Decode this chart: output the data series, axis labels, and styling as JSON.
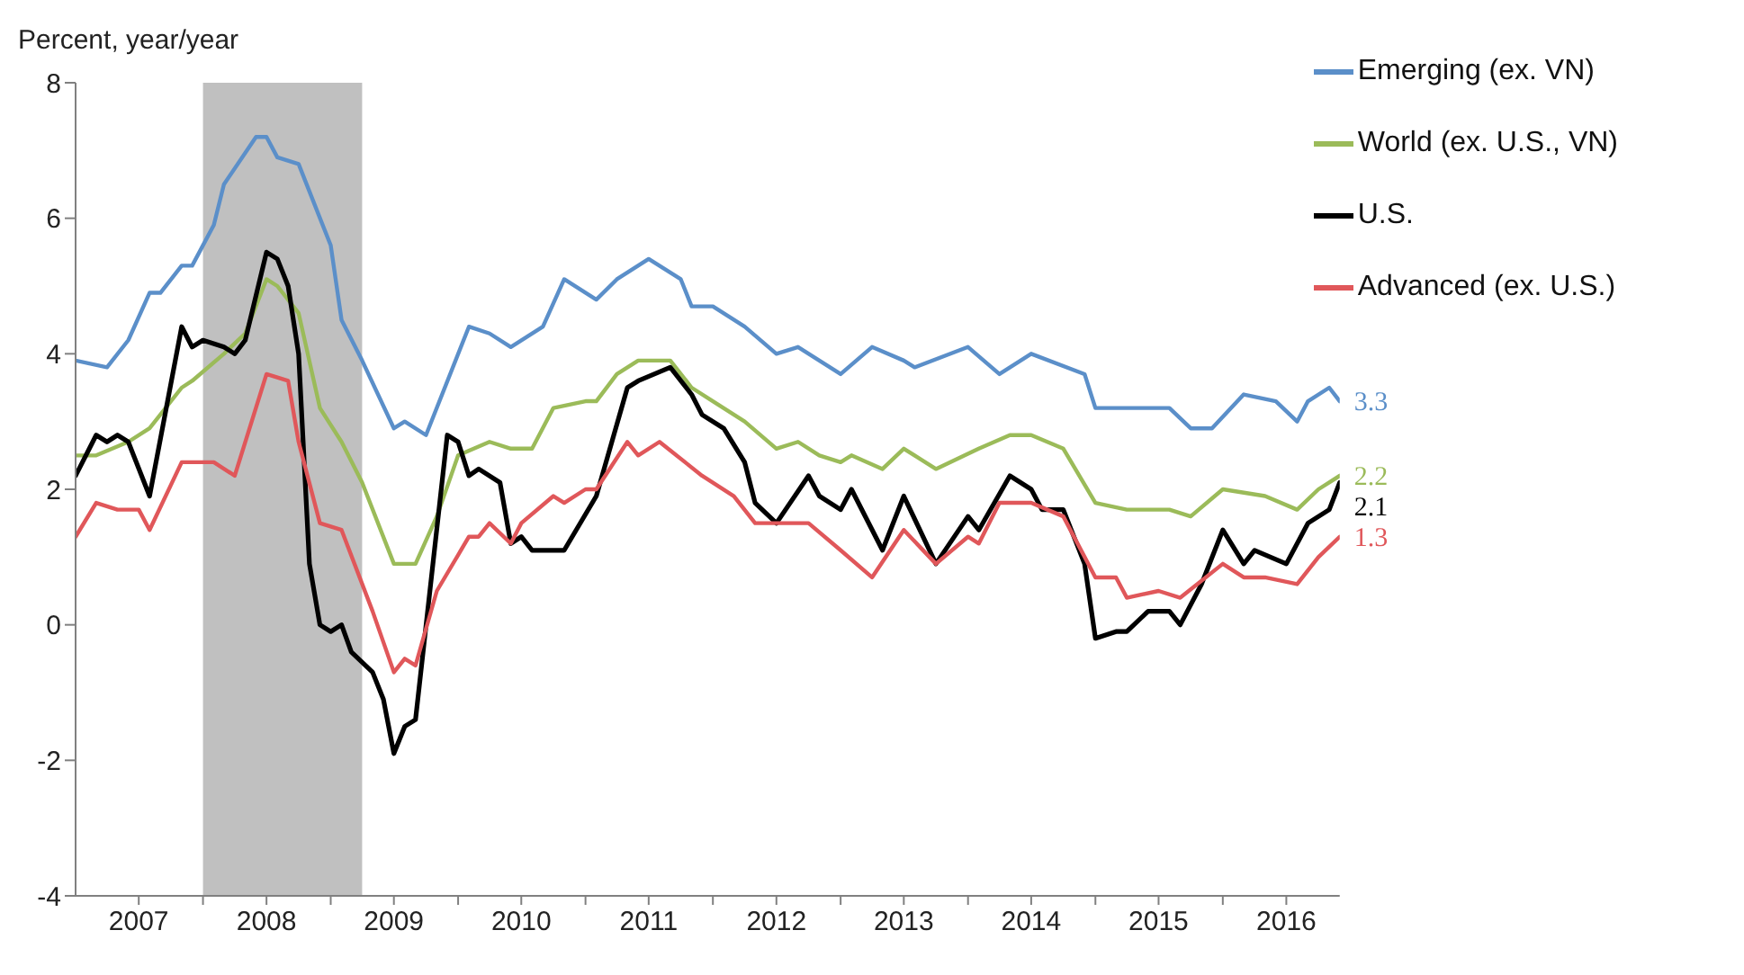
{
  "chart_data": {
    "type": "line",
    "ylabel": "Percent, year/year",
    "xlim": [
      "2007-01",
      "2016-12"
    ],
    "xticks": [
      {
        "value": "2007-07",
        "label": "2007"
      },
      {
        "value": "2008-07",
        "label": "2008"
      },
      {
        "value": "2009-07",
        "label": "2009"
      },
      {
        "value": "2010-07",
        "label": "2010"
      },
      {
        "value": "2011-07",
        "label": "2011"
      },
      {
        "value": "2012-07",
        "label": "2012"
      },
      {
        "value": "2013-07",
        "label": "2013"
      },
      {
        "value": "2014-07",
        "label": "2014"
      },
      {
        "value": "2015-07",
        "label": "2015"
      },
      {
        "value": "2016-07",
        "label": "2016"
      },
      {
        "value": "2008-01",
        "label": null
      },
      {
        "value": "2009-01",
        "label": null
      },
      {
        "value": "2010-01",
        "label": null
      },
      {
        "value": "2011-01",
        "label": null
      },
      {
        "value": "2012-01",
        "label": null
      },
      {
        "value": "2013-01",
        "label": null
      },
      {
        "value": "2014-01",
        "label": null
      },
      {
        "value": "2015-01",
        "label": null
      },
      {
        "value": "2016-01",
        "label": null
      }
    ],
    "ylim": [
      -4,
      8
    ],
    "yticks": [
      -4,
      -2,
      0,
      2,
      4,
      6,
      8
    ],
    "grid": false,
    "legend": "top right",
    "marker": "none",
    "line_style": "solid",
    "bands": [
      {
        "axis": "x",
        "from": "2008-01",
        "to": "2009-04",
        "color": "#c0c0c0"
      }
    ],
    "series": [
      {
        "name": "Emerging (ex. VN)",
        "color": "#5b8fc9",
        "x": [
          "2007-01",
          "2007-04",
          "2007-06",
          "2007-08",
          "2007-09",
          "2007-11",
          "2007-12",
          "2008-02",
          "2008-03",
          "2008-06",
          "2008-07",
          "2008-08",
          "2008-10",
          "2009-01",
          "2009-02",
          "2009-04",
          "2009-07",
          "2009-08",
          "2009-10",
          "2010-02",
          "2010-04",
          "2010-06",
          "2010-09",
          "2010-11",
          "2011-02",
          "2011-04",
          "2011-07",
          "2011-10",
          "2011-11",
          "2012-01",
          "2012-04",
          "2012-07",
          "2012-09",
          "2012-11",
          "2013-01",
          "2013-04",
          "2013-07",
          "2013-08",
          "2014-01",
          "2014-04",
          "2014-07",
          "2014-12",
          "2015-01",
          "2015-04",
          "2015-08",
          "2015-10",
          "2015-12",
          "2016-03",
          "2016-06",
          "2016-08",
          "2016-09",
          "2016-11",
          "2016-12"
        ],
        "values": [
          3.9,
          3.8,
          4.2,
          4.9,
          4.9,
          5.3,
          5.3,
          5.9,
          6.5,
          7.2,
          7.2,
          6.9,
          6.8,
          5.6,
          4.5,
          3.9,
          2.9,
          3.0,
          2.8,
          4.4,
          4.3,
          4.1,
          4.4,
          5.1,
          4.8,
          5.1,
          5.4,
          5.1,
          4.7,
          4.7,
          4.4,
          4.0,
          4.1,
          3.9,
          3.7,
          4.1,
          3.9,
          3.8,
          4.1,
          3.7,
          4.0,
          3.7,
          3.2,
          3.2,
          3.2,
          2.9,
          2.9,
          3.4,
          3.3,
          3.0,
          3.3,
          3.5,
          3.3
        ],
        "value_labels": [
          null,
          null,
          null,
          null,
          null,
          null,
          null,
          null,
          null,
          null,
          null,
          null,
          null,
          null,
          null,
          null,
          null,
          null,
          null,
          null,
          null,
          null,
          null,
          null,
          null,
          null,
          null,
          null,
          null,
          null,
          null,
          null,
          null,
          null,
          null,
          null,
          null,
          null,
          null,
          null,
          null,
          null,
          null,
          null,
          null,
          null,
          null,
          null,
          null,
          null,
          null,
          null,
          "3.3"
        ]
      },
      {
        "name": "World (ex. U.S., VN)",
        "color": "#9bbb59",
        "x": [
          "2007-01",
          "2007-03",
          "2007-06",
          "2007-08",
          "2007-11",
          "2007-12",
          "2008-03",
          "2008-05",
          "2008-07",
          "2008-08",
          "2008-10",
          "2008-12",
          "2009-02",
          "2009-04",
          "2009-07",
          "2009-09",
          "2009-11",
          "2010-01",
          "2010-04",
          "2010-06",
          "2010-08",
          "2010-10",
          "2011-01",
          "2011-02",
          "2011-04",
          "2011-06",
          "2011-09",
          "2011-11",
          "2012-01",
          "2012-04",
          "2012-07",
          "2012-09",
          "2012-11",
          "2013-01",
          "2013-02",
          "2013-05",
          "2013-07",
          "2013-10",
          "2014-02",
          "2014-05",
          "2014-07",
          "2014-10",
          "2015-01",
          "2015-04",
          "2015-08",
          "2015-10",
          "2016-01",
          "2016-05",
          "2016-08",
          "2016-10",
          "2016-12"
        ],
        "values": [
          2.5,
          2.5,
          2.7,
          2.9,
          3.5,
          3.6,
          4.0,
          4.3,
          5.1,
          5.0,
          4.6,
          3.2,
          2.7,
          2.1,
          0.9,
          0.9,
          1.6,
          2.5,
          2.7,
          2.6,
          2.6,
          3.2,
          3.3,
          3.3,
          3.7,
          3.9,
          3.9,
          3.5,
          3.3,
          3.0,
          2.6,
          2.7,
          2.5,
          2.4,
          2.5,
          2.3,
          2.6,
          2.3,
          2.6,
          2.8,
          2.8,
          2.6,
          1.8,
          1.7,
          1.7,
          1.6,
          2.0,
          1.9,
          1.7,
          2.0,
          2.2
        ],
        "value_labels": [
          null,
          null,
          null,
          null,
          null,
          null,
          null,
          null,
          null,
          null,
          null,
          null,
          null,
          null,
          null,
          null,
          null,
          null,
          null,
          null,
          null,
          null,
          null,
          null,
          null,
          null,
          null,
          null,
          null,
          null,
          null,
          null,
          null,
          null,
          null,
          null,
          null,
          null,
          null,
          null,
          null,
          null,
          null,
          null,
          null,
          null,
          null,
          null,
          null,
          null,
          "2.2"
        ]
      },
      {
        "name": "U.S.",
        "color": "#000000",
        "x": [
          "2007-01",
          "2007-03",
          "2007-04",
          "2007-05",
          "2007-06",
          "2007-08",
          "2007-11",
          "2007-12",
          "2008-01",
          "2008-03",
          "2008-04",
          "2008-05",
          "2008-07",
          "2008-08",
          "2008-09",
          "2008-10",
          "2008-11",
          "2008-12",
          "2009-01",
          "2009-02",
          "2009-03",
          "2009-05",
          "2009-06",
          "2009-07",
          "2009-08",
          "2009-09",
          "2009-12",
          "2010-01",
          "2010-02",
          "2010-03",
          "2010-05",
          "2010-06",
          "2010-07",
          "2010-08",
          "2010-11",
          "2011-02",
          "2011-05",
          "2011-06",
          "2011-09",
          "2011-11",
          "2011-12",
          "2012-02",
          "2012-04",
          "2012-05",
          "2012-07",
          "2012-10",
          "2012-11",
          "2013-01",
          "2013-02",
          "2013-05",
          "2013-07",
          "2013-10",
          "2014-01",
          "2014-02",
          "2014-05",
          "2014-07",
          "2014-08",
          "2014-10",
          "2014-12",
          "2015-01",
          "2015-03",
          "2015-04",
          "2015-06",
          "2015-08",
          "2015-09",
          "2015-11",
          "2016-01",
          "2016-03",
          "2016-04",
          "2016-07",
          "2016-09",
          "2016-11",
          "2016-12"
        ],
        "values": [
          2.2,
          2.8,
          2.7,
          2.8,
          2.7,
          1.9,
          4.4,
          4.1,
          4.2,
          4.1,
          4.0,
          4.2,
          5.5,
          5.4,
          5.0,
          4.0,
          0.9,
          0.0,
          -0.1,
          0.0,
          -0.4,
          -0.7,
          -1.1,
          -1.9,
          -1.5,
          -1.4,
          2.8,
          2.7,
          2.2,
          2.3,
          2.1,
          1.2,
          1.3,
          1.1,
          1.1,
          1.9,
          3.5,
          3.6,
          3.8,
          3.4,
          3.1,
          2.9,
          2.4,
          1.8,
          1.5,
          2.2,
          1.9,
          1.7,
          2.0,
          1.1,
          1.9,
          0.9,
          1.6,
          1.4,
          2.2,
          2.0,
          1.7,
          1.7,
          0.9,
          -0.2,
          -0.1,
          -0.1,
          0.2,
          0.2,
          0.0,
          0.6,
          1.4,
          0.9,
          1.1,
          0.9,
          1.5,
          1.7,
          2.1
        ],
        "value_labels": [
          null,
          null,
          null,
          null,
          null,
          null,
          null,
          null,
          null,
          null,
          null,
          null,
          null,
          null,
          null,
          null,
          null,
          null,
          null,
          null,
          null,
          null,
          null,
          null,
          null,
          null,
          null,
          null,
          null,
          null,
          null,
          null,
          null,
          null,
          null,
          null,
          null,
          null,
          null,
          null,
          null,
          null,
          null,
          null,
          null,
          null,
          null,
          null,
          null,
          null,
          null,
          null,
          null,
          null,
          null,
          null,
          null,
          null,
          null,
          null,
          null,
          null,
          null,
          null,
          null,
          null,
          null,
          null,
          null,
          null,
          null,
          null,
          "2.1"
        ]
      },
      {
        "name": "Advanced (ex. U.S.)",
        "color": "#e0575a",
        "x": [
          "2007-01",
          "2007-03",
          "2007-05",
          "2007-07",
          "2007-08",
          "2007-11",
          "2008-02",
          "2008-04",
          "2008-07",
          "2008-09",
          "2008-10",
          "2008-12",
          "2009-02",
          "2009-05",
          "2009-07",
          "2009-08",
          "2009-09",
          "2009-11",
          "2010-02",
          "2010-03",
          "2010-04",
          "2010-06",
          "2010-07",
          "2010-10",
          "2010-11",
          "2011-01",
          "2011-02",
          "2011-05",
          "2011-06",
          "2011-08",
          "2011-12",
          "2012-03",
          "2012-05",
          "2012-10",
          "2013-01",
          "2013-04",
          "2013-07",
          "2013-10",
          "2014-01",
          "2014-02",
          "2014-04",
          "2014-07",
          "2014-10",
          "2015-01",
          "2015-03",
          "2015-04",
          "2015-07",
          "2015-09",
          "2016-01",
          "2016-03",
          "2016-05",
          "2016-08",
          "2016-10",
          "2016-12"
        ],
        "values": [
          1.3,
          1.8,
          1.7,
          1.7,
          1.4,
          2.4,
          2.4,
          2.2,
          3.7,
          3.6,
          2.7,
          1.5,
          1.4,
          0.2,
          -0.7,
          -0.5,
          -0.6,
          0.5,
          1.3,
          1.3,
          1.5,
          1.2,
          1.5,
          1.9,
          1.8,
          2.0,
          2.0,
          2.7,
          2.5,
          2.7,
          2.2,
          1.9,
          1.5,
          1.5,
          1.1,
          0.7,
          1.4,
          0.9,
          1.3,
          1.2,
          1.8,
          1.8,
          1.6,
          0.7,
          0.7,
          0.4,
          0.5,
          0.4,
          0.9,
          0.7,
          0.7,
          0.6,
          1.0,
          1.3
        ],
        "value_labels": [
          null,
          null,
          null,
          null,
          null,
          null,
          null,
          null,
          null,
          null,
          null,
          null,
          null,
          null,
          null,
          null,
          null,
          null,
          null,
          null,
          null,
          null,
          null,
          null,
          null,
          null,
          null,
          null,
          null,
          null,
          null,
          null,
          null,
          null,
          null,
          null,
          null,
          null,
          null,
          null,
          null,
          null,
          null,
          null,
          null,
          null,
          null,
          null,
          null,
          null,
          null,
          null,
          null,
          "1.3"
        ]
      }
    ]
  }
}
